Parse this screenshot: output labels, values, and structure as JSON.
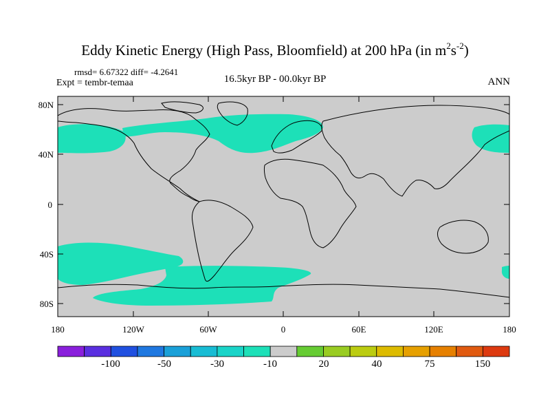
{
  "title": {
    "main": "Eddy Kinetic Energy (High Pass, Bloomfield) at 200 hPa (in m",
    "sup1": "2",
    "mid": "s",
    "sup2": "-2",
    "end": ")"
  },
  "stats": "rmsd= 6.67322 diff= -4.2641",
  "experiment": "Expt = tembr-temaa",
  "period": "16.5kyr BP - 00.0kyr BP",
  "season": "ANN",
  "y_axis_labels": [
    "80N",
    "40N",
    "0",
    "40S",
    "80S"
  ],
  "x_axis_labels": [
    "180",
    "120W",
    "60W",
    "0",
    "60E",
    "120E",
    "180"
  ],
  "colorbar": {
    "colors": [
      "#8a1fdc",
      "#5a2fe0",
      "#2050e0",
      "#1f78e0",
      "#1aa0d8",
      "#18bcd4",
      "#1ad4c8",
      "#1de0b8",
      "#cccccc",
      "#66cc33",
      "#99cc22",
      "#bbcc11",
      "#ddbb00",
      "#e6a000",
      "#e68000",
      "#e05a10",
      "#dd3a10"
    ],
    "labels": [
      "-100",
      "-50",
      "-30",
      "-10",
      "20",
      "40",
      "75",
      "150"
    ]
  },
  "map_colors": {
    "background": "#cccccc",
    "anomaly": "#1de0b8",
    "coast": "#000000"
  }
}
